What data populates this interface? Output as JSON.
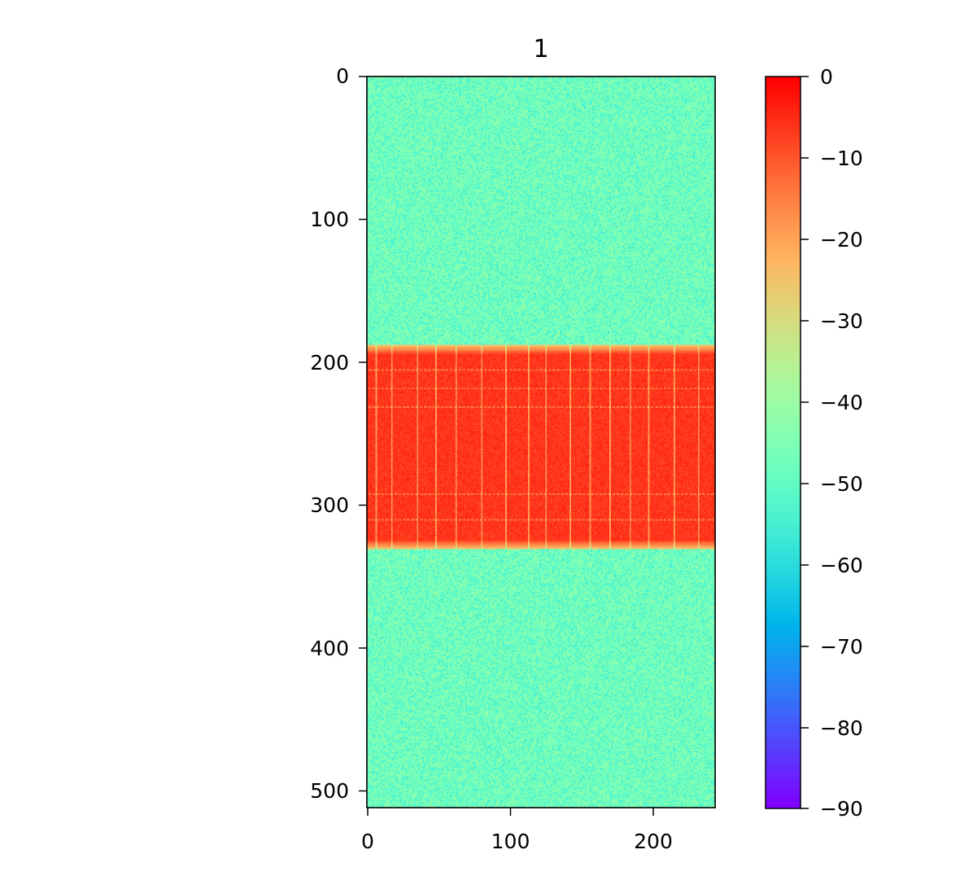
{
  "chart_data": {
    "type": "heatmap",
    "title": "1",
    "xlabel": "",
    "ylabel": "",
    "x_range": [
      0,
      244
    ],
    "y_range": [
      0,
      512
    ],
    "y_inverted": true,
    "x_ticks": [
      0,
      100,
      200
    ],
    "y_ticks": [
      0,
      100,
      200,
      300,
      400,
      500
    ],
    "colormap": "rainbow",
    "color_range": [
      -90,
      0
    ],
    "colorbar_ticks": [
      0,
      -10,
      -20,
      -30,
      -40,
      -50,
      -60,
      -70,
      -80,
      -90
    ],
    "background_level": -48,
    "band": {
      "y_start": 188,
      "y_end": 330,
      "level": -6
    },
    "band_stripes": {
      "vertical_line_x": [
        6,
        17,
        35,
        48,
        62,
        80,
        97,
        113,
        125,
        142,
        156,
        170,
        184,
        197,
        215,
        232
      ],
      "horizontal_line_y": [
        205,
        218,
        231,
        292,
        310
      ]
    }
  },
  "labels": {
    "title": "1",
    "x_ticks": [
      "0",
      "100",
      "200"
    ],
    "y_ticks": [
      "0",
      "100",
      "200",
      "300",
      "400",
      "500"
    ],
    "colorbar_ticks": [
      "0",
      "−10",
      "−20",
      "−30",
      "−40",
      "−50",
      "−60",
      "−70",
      "−80",
      "−90"
    ]
  }
}
